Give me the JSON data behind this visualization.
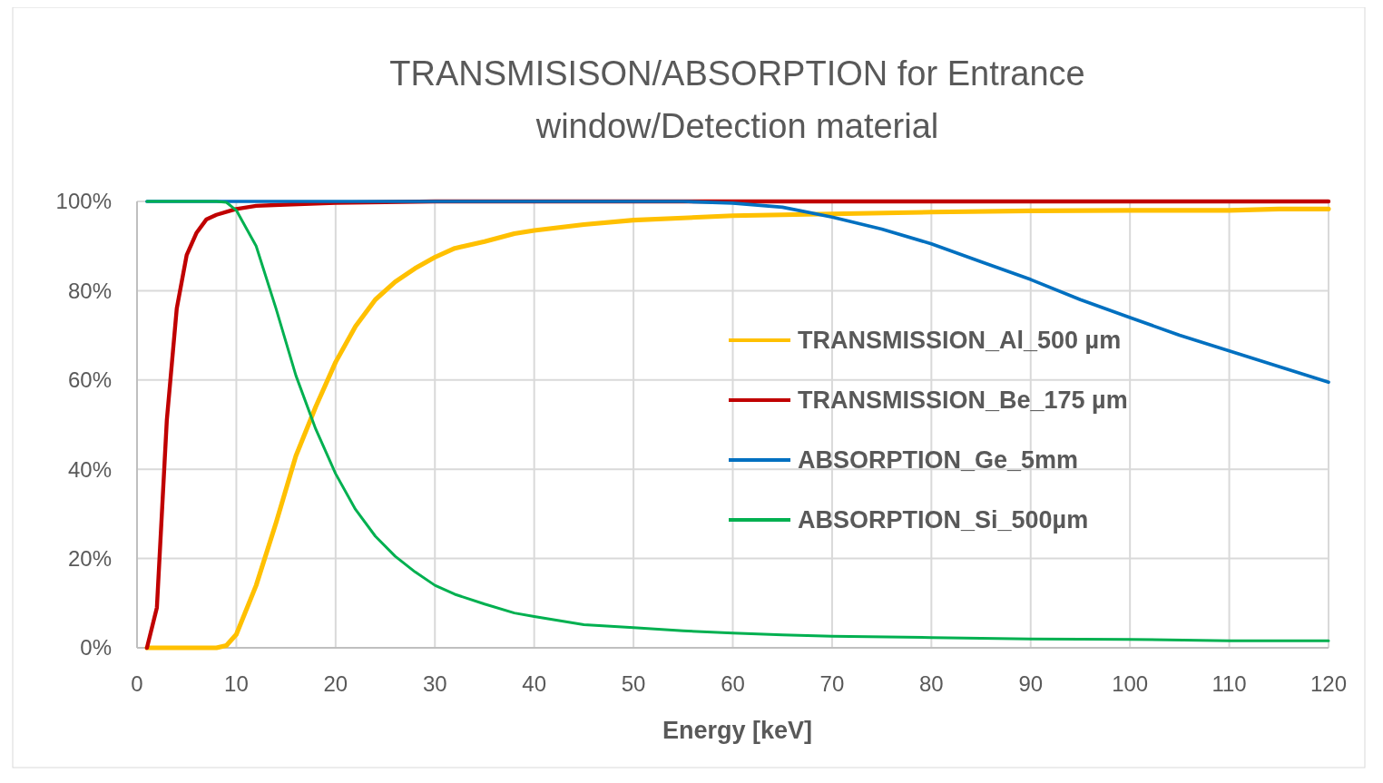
{
  "chart_data": {
    "type": "line",
    "title": "TRANSMISISON/ABSORPTION for Entrance window/Detection material",
    "xlabel": "Energy [keV]",
    "xlim": [
      0,
      120
    ],
    "xticks": [
      0,
      10,
      20,
      30,
      40,
      50,
      60,
      70,
      80,
      90,
      100,
      110,
      120
    ],
    "ylim": [
      0,
      100
    ],
    "yticks": [
      {
        "value": 0,
        "label": "0%"
      },
      {
        "value": 20,
        "label": "20%"
      },
      {
        "value": 40,
        "label": "40%"
      },
      {
        "value": 60,
        "label": "60%"
      },
      {
        "value": 80,
        "label": "80%"
      },
      {
        "value": 100,
        "label": "100%"
      }
    ],
    "grid": true,
    "legend": "right",
    "series": [
      {
        "name": "TRANSMISSION_Al_500 µm",
        "color": "#ffc000",
        "x": [
          1,
          2,
          4,
          6,
          8,
          9,
          10,
          12,
          14,
          16,
          18,
          20,
          22,
          24,
          26,
          28,
          30,
          32,
          35,
          38,
          40,
          45,
          50,
          55,
          60,
          70,
          80,
          90,
          100,
          110,
          115,
          120
        ],
        "values": [
          0,
          0,
          0,
          0,
          0,
          0.5,
          3,
          14,
          28,
          43,
          54,
          64,
          72,
          78,
          82,
          85,
          87.5,
          89.5,
          91,
          92.8,
          93.5,
          94.8,
          95.8,
          96.3,
          96.8,
          97.2,
          97.6,
          97.9,
          98,
          98,
          98.3,
          98.3
        ]
      },
      {
        "name": "TRANSMISSION_Be_175 µm",
        "color": "#c00000",
        "x": [
          1,
          2,
          3,
          4,
          5,
          6,
          7,
          8,
          9.5,
          10,
          12,
          15,
          20,
          30,
          60,
          120
        ],
        "values": [
          0,
          9,
          51,
          76,
          88,
          93,
          96,
          97,
          98,
          98.3,
          99,
          99.3,
          99.7,
          100,
          100,
          100
        ]
      },
      {
        "name": "ABSORPTION_Ge_5mm",
        "color": "#0070c0",
        "x": [
          1,
          10,
          20,
          40,
          55,
          60,
          65,
          70,
          75,
          80,
          85,
          90,
          95,
          100,
          105,
          110,
          115,
          120
        ],
        "values": [
          100,
          100,
          100,
          100,
          100,
          99.6,
          98.7,
          96.5,
          93.8,
          90.5,
          86.5,
          82.5,
          78,
          74,
          70,
          66.5,
          63,
          59.5
        ]
      },
      {
        "name": "ABSORPTION_Si_500µm",
        "color": "#00b050",
        "x": [
          1,
          4,
          8,
          9,
          10,
          12,
          14,
          16,
          18,
          20,
          22,
          24,
          26,
          28,
          30,
          32,
          35,
          38,
          40,
          45,
          50,
          55,
          60,
          65,
          70,
          80,
          90,
          100,
          110,
          120
        ],
        "values": [
          100,
          100,
          100,
          99.8,
          98,
          90,
          76,
          61,
          49,
          39,
          31,
          25,
          20.5,
          17,
          14,
          12,
          9.8,
          7.8,
          7,
          5.2,
          4.5,
          3.8,
          3.3,
          2.9,
          2.6,
          2.3,
          2,
          1.9,
          1.6,
          1.6
        ]
      }
    ]
  }
}
